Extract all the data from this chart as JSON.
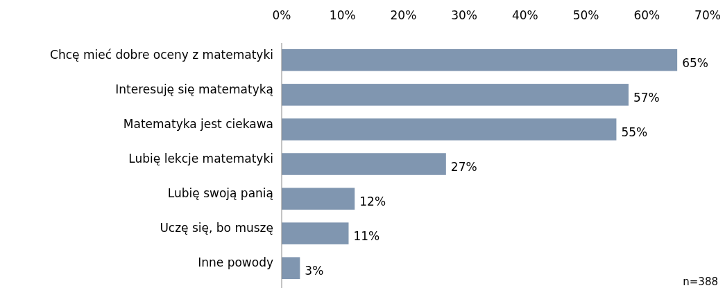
{
  "chart_data": {
    "type": "bar",
    "orientation": "horizontal",
    "categories": [
      "Chcę mieć dobre oceny z matematyki",
      "Interesuję się matematyką",
      "Matematyka jest ciekawa",
      "Lubię lekcje matematyki",
      "Lubię swoją panią",
      "Uczę się, bo muszę",
      "Inne powody"
    ],
    "values": [
      65,
      57,
      55,
      27,
      12,
      11,
      3
    ],
    "value_labels": [
      "65%",
      "57%",
      "55%",
      "27%",
      "12%",
      "11%",
      "3%"
    ],
    "color": "#8096b0",
    "xlim": [
      0,
      70
    ],
    "xticks": [
      {
        "value": 0,
        "label": "0%"
      },
      {
        "value": 10,
        "label": "10%"
      },
      {
        "value": 20,
        "label": "20%"
      },
      {
        "value": 30,
        "label": "30%"
      },
      {
        "value": 40,
        "label": "40%"
      },
      {
        "value": 50,
        "label": "50%"
      },
      {
        "value": 60,
        "label": "60%"
      },
      {
        "value": 70,
        "label": "70%"
      }
    ],
    "grid": false,
    "annotations": [
      "n=388"
    ]
  }
}
